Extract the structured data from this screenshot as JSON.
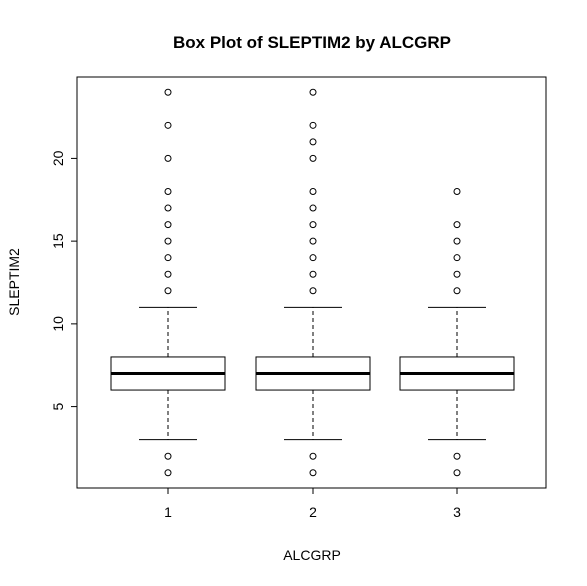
{
  "chart_data": {
    "type": "boxplot",
    "title": "Box Plot of SLEPTIM2 by ALCGRP",
    "xlabel": "ALCGRP",
    "ylabel": "SLEPTIM2",
    "categories": [
      "1",
      "2",
      "3"
    ],
    "y_ticks": [
      5,
      10,
      15,
      20
    ],
    "y_tick_labels": [
      "5",
      "10",
      "15",
      "20"
    ],
    "ylim": [
      0.08,
      24.92
    ],
    "grid": false,
    "legend": "none",
    "colors": {
      "line": "#000000",
      "background": "#ffffff"
    },
    "boxes": [
      {
        "category": "1",
        "whisker_low": 3,
        "q1": 6,
        "median": 7,
        "q3": 8,
        "whisker_high": 11,
        "outliers": [
          1,
          2,
          12,
          13,
          14,
          15,
          16,
          17,
          18,
          20,
          22,
          24
        ]
      },
      {
        "category": "2",
        "whisker_low": 3,
        "q1": 6,
        "median": 7,
        "q3": 8,
        "whisker_high": 11,
        "outliers": [
          1,
          2,
          12,
          13,
          14,
          15,
          16,
          17,
          18,
          20,
          21,
          22,
          24
        ]
      },
      {
        "category": "3",
        "whisker_low": 3,
        "q1": 6,
        "median": 7,
        "q3": 8,
        "whisker_high": 11,
        "outliers": [
          1,
          2,
          12,
          13,
          14,
          15,
          16,
          18
        ]
      }
    ]
  }
}
